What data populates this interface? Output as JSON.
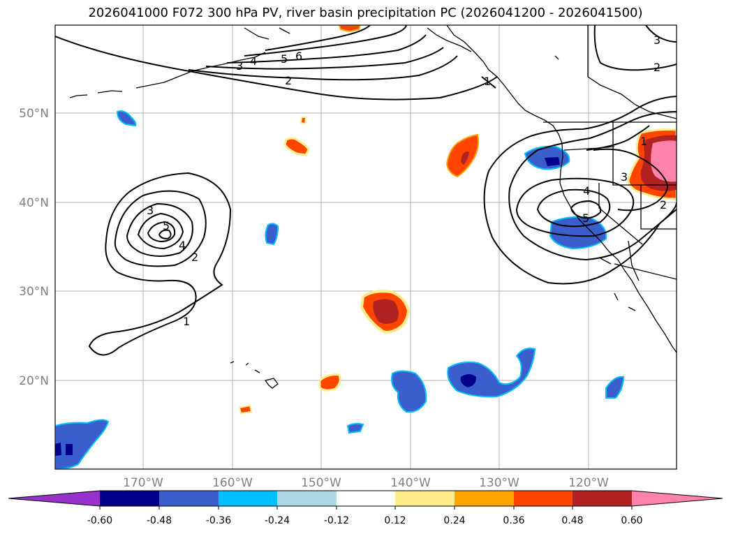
{
  "title": "2026041000 F072 300 hPa PV, river basin precipitation PC (2026041200 - 2026041500)",
  "axes": {
    "lon_ticks": [
      "170°W",
      "160°W",
      "150°W",
      "140°W",
      "130°W",
      "120°W"
    ],
    "lat_ticks": [
      "50°N",
      "40°N",
      "30°N",
      "20°N"
    ]
  },
  "contour_labels": {
    "north_jet": [
      "1",
      "2",
      "3",
      "4",
      "5",
      "6"
    ],
    "west_low": [
      "1",
      "2",
      "3",
      "4",
      "5"
    ],
    "east_low": [
      "2",
      "3",
      "4",
      "5"
    ],
    "corner": [
      "3",
      "2"
    ],
    "coast": [
      "1"
    ]
  },
  "colorbar": {
    "ticks": [
      "-0.60",
      "-0.48",
      "-0.36",
      "-0.24",
      "-0.12",
      "0.12",
      "0.24",
      "0.36",
      "0.48",
      "0.60"
    ],
    "colors": [
      "#9932cc",
      "#00008b",
      "#3a5fcd",
      "#00bfff",
      "#add8e6",
      "#ffffff",
      "#ffec8b",
      "#ffa500",
      "#ff4500",
      "#b22222",
      "#ff82ab"
    ]
  }
}
